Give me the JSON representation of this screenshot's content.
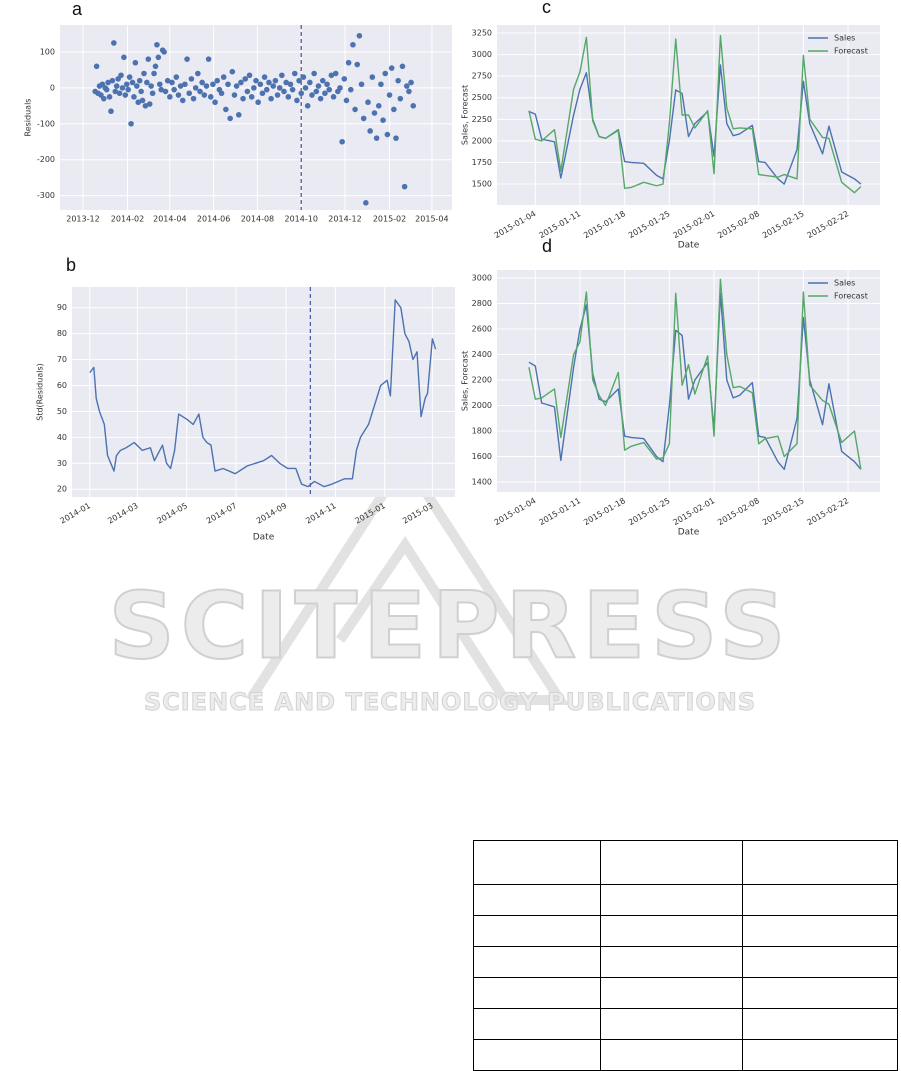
{
  "chart_data": [
    {
      "type": "scatter",
      "panel_label": "a",
      "y_label": "Residuals",
      "color": "#4c72b0",
      "grid": true,
      "vline": 304,
      "vline_color": "#4c5ea8",
      "xlim": [
        -32,
        514
      ],
      "ylim": [
        -340,
        175
      ],
      "xticks": [
        {
          "value": 0,
          "label": "2013-12"
        },
        {
          "value": 62,
          "label": "2014-02"
        },
        {
          "value": 121,
          "label": "2014-04"
        },
        {
          "value": 182,
          "label": "2014-06"
        },
        {
          "value": 243,
          "label": "2014-08"
        },
        {
          "value": 304,
          "label": "2014-10"
        },
        {
          "value": 365,
          "label": "2014-12"
        },
        {
          "value": 427,
          "label": "2015-02"
        },
        {
          "value": 486,
          "label": "2015-04"
        }
      ],
      "yticks": [
        -300,
        -200,
        -100,
        0,
        100
      ],
      "x": [
        17,
        19,
        21,
        23,
        25,
        27,
        29,
        31,
        33,
        35,
        37,
        39,
        41,
        43,
        45,
        47,
        49,
        51,
        53,
        55,
        57,
        59,
        61,
        63,
        65,
        67,
        69,
        71,
        73,
        75,
        77,
        79,
        81,
        83,
        85,
        87,
        89,
        91,
        93,
        95,
        97,
        99,
        101,
        103,
        105,
        107,
        109,
        111,
        113,
        115,
        118,
        121,
        124,
        127,
        130,
        133,
        136,
        139,
        142,
        145,
        148,
        151,
        154,
        157,
        160,
        163,
        166,
        169,
        172,
        175,
        178,
        181,
        184,
        187,
        190,
        193,
        196,
        199,
        202,
        205,
        208,
        211,
        214,
        217,
        220,
        223,
        226,
        229,
        232,
        235,
        238,
        241,
        244,
        247,
        250,
        253,
        256,
        259,
        262,
        265,
        268,
        271,
        274,
        277,
        280,
        283,
        286,
        289,
        292,
        295,
        298,
        301,
        304,
        307,
        310,
        313,
        316,
        319,
        322,
        325,
        328,
        331,
        334,
        337,
        340,
        343,
        346,
        349,
        352,
        355,
        358,
        361,
        364,
        367,
        370,
        373,
        376,
        379,
        382,
        385,
        388,
        391,
        394,
        397,
        400,
        403,
        406,
        409,
        412,
        415,
        418,
        421,
        424,
        427,
        430,
        433,
        436,
        439,
        442,
        445,
        448,
        451,
        454,
        457,
        460
      ],
      "values": [
        -10,
        60,
        -15,
        5,
        -20,
        10,
        -30,
        0,
        -5,
        15,
        -25,
        -65,
        20,
        125,
        -10,
        5,
        25,
        -15,
        35,
        0,
        85,
        -20,
        10,
        -5,
        30,
        -100,
        15,
        -25,
        70,
        5,
        -40,
        20,
        -10,
        -35,
        40,
        -50,
        15,
        80,
        -45,
        5,
        -15,
        40,
        60,
        120,
        85,
        10,
        -5,
        105,
        100,
        -10,
        20,
        -25,
        15,
        -5,
        30,
        -20,
        5,
        -35,
        10,
        80,
        -15,
        25,
        -30,
        0,
        40,
        -10,
        15,
        -20,
        5,
        80,
        -25,
        10,
        -40,
        20,
        -5,
        -15,
        30,
        -60,
        10,
        -85,
        45,
        -20,
        5,
        -75,
        15,
        -30,
        25,
        -10,
        35,
        -25,
        0,
        20,
        -40,
        10,
        -15,
        30,
        -5,
        15,
        -30,
        5,
        20,
        -20,
        0,
        35,
        -10,
        15,
        -25,
        10,
        -5,
        40,
        -35,
        20,
        -15,
        30,
        0,
        -50,
        15,
        -20,
        40,
        -10,
        5,
        -30,
        20,
        -15,
        10,
        -5,
        35,
        -25,
        40,
        -10,
        0,
        -150,
        25,
        -35,
        70,
        -5,
        120,
        -60,
        65,
        145,
        10,
        -85,
        -320,
        -40,
        -120,
        30,
        -70,
        -140,
        -50,
        10,
        -90,
        40,
        -130,
        -20,
        55,
        -60,
        -140,
        20,
        -30,
        60,
        -275,
        5,
        -10,
        15,
        -50
      ]
    },
    {
      "type": "line",
      "panel_label": "b",
      "x_label": "Date",
      "y_label": "Std(Residuals)",
      "color": "#4c72b0",
      "grid": true,
      "vline": 273,
      "vline_color": "#4c5ea8",
      "xlim": [
        -22,
        452
      ],
      "ylim": [
        17,
        98
      ],
      "xticks": [
        {
          "value": 0,
          "label": "2014-01"
        },
        {
          "value": 59,
          "label": "2014-03"
        },
        {
          "value": 120,
          "label": "2014-05"
        },
        {
          "value": 181,
          "label": "2014-07"
        },
        {
          "value": 243,
          "label": "2014-09"
        },
        {
          "value": 304,
          "label": "2014-11"
        },
        {
          "value": 365,
          "label": "2015-01"
        },
        {
          "value": 424,
          "label": "2015-03"
        }
      ],
      "yticks": [
        20,
        30,
        40,
        50,
        60,
        70,
        80,
        90
      ],
      "x": [
        0,
        5,
        8,
        12,
        18,
        22,
        26,
        30,
        33,
        38,
        45,
        55,
        65,
        75,
        80,
        90,
        95,
        100,
        105,
        110,
        120,
        128,
        135,
        140,
        145,
        150,
        155,
        165,
        180,
        195,
        205,
        215,
        225,
        235,
        245,
        255,
        262,
        270,
        278,
        290,
        300,
        315,
        325,
        330,
        335,
        345,
        355,
        360,
        368,
        372,
        378,
        385,
        390,
        395,
        400,
        405,
        410,
        415,
        418,
        424,
        428
      ],
      "values": [
        65,
        67,
        55,
        50,
        45,
        33,
        30,
        27,
        33,
        35,
        36,
        38,
        35,
        36,
        31,
        37,
        30,
        28,
        35,
        49,
        47,
        45,
        49,
        40,
        38,
        37,
        27,
        28,
        26,
        29,
        30,
        31,
        33,
        30,
        28,
        28,
        22,
        21,
        23,
        21,
        22,
        24,
        24,
        35,
        40,
        45,
        55,
        60,
        62,
        56,
        93,
        90,
        80,
        77,
        70,
        73,
        48,
        55,
        57,
        78,
        74
      ]
    },
    {
      "type": "line",
      "panel_label": "c",
      "x_label": "Date",
      "y_label": "Sales, Forecast",
      "grid": true,
      "legend": "upper right",
      "xlim": [
        "2014-12-29",
        "2015-02-27"
      ],
      "ylim": [
        1257,
        3343
      ],
      "xticks": [
        "2015-01-04",
        "2015-01-11",
        "2015-01-18",
        "2015-01-25",
        "2015-02-01",
        "2015-02-08",
        "2015-02-15",
        "2015-02-22"
      ],
      "yticks": [
        1500,
        1750,
        2000,
        2250,
        2500,
        2750,
        3000,
        3250
      ],
      "x": [
        "2015-01-03",
        "2015-01-04",
        "2015-01-05",
        "2015-01-07",
        "2015-01-08",
        "2015-01-10",
        "2015-01-11",
        "2015-01-12",
        "2015-01-13",
        "2015-01-14",
        "2015-01-15",
        "2015-01-17",
        "2015-01-18",
        "2015-01-19",
        "2015-01-21",
        "2015-01-23",
        "2015-01-24",
        "2015-01-25",
        "2015-01-26",
        "2015-01-27",
        "2015-01-28",
        "2015-01-29",
        "2015-01-31",
        "2015-02-01",
        "2015-02-02",
        "2015-02-03",
        "2015-02-04",
        "2015-02-05",
        "2015-02-07",
        "2015-02-08",
        "2015-02-09",
        "2015-02-11",
        "2015-02-12",
        "2015-02-14",
        "2015-02-15",
        "2015-02-16",
        "2015-02-18",
        "2015-02-19",
        "2015-02-21",
        "2015-02-23",
        "2015-02-24"
      ],
      "series": [
        {
          "name": "Sales",
          "color": "#4c72b0",
          "values": [
            2340,
            2310,
            2020,
            1990,
            1570,
            2300,
            2600,
            2790,
            2250,
            2050,
            2030,
            2130,
            1760,
            1750,
            1740,
            1600,
            1560,
            2000,
            2590,
            2550,
            2050,
            2200,
            2340,
            1820,
            2880,
            2200,
            2060,
            2080,
            2180,
            1760,
            1750,
            1560,
            1500,
            1900,
            2690,
            2200,
            1850,
            2170,
            1640,
            1560,
            1500
          ]
        },
        {
          "name": "Forecast",
          "color": "#55a868",
          "values": [
            2350,
            2020,
            2000,
            2130,
            1650,
            2600,
            2800,
            3200,
            2230,
            2050,
            2030,
            2120,
            1450,
            1460,
            1520,
            1480,
            1500,
            2200,
            3180,
            2300,
            2300,
            2150,
            2350,
            1620,
            3220,
            2380,
            2140,
            2150,
            2140,
            1610,
            1600,
            1580,
            1610,
            1560,
            2990,
            2250,
            2040,
            2030,
            1520,
            1400,
            1470
          ]
        }
      ]
    },
    {
      "type": "line",
      "panel_label": "d",
      "x_label": "Date",
      "y_label": "Sales, Forecast",
      "grid": true,
      "legend": "upper right",
      "xlim": [
        "2014-12-29",
        "2015-02-27"
      ],
      "ylim": [
        1322,
        3063
      ],
      "xticks": [
        "2015-01-04",
        "2015-01-11",
        "2015-01-18",
        "2015-01-25",
        "2015-02-01",
        "2015-02-08",
        "2015-02-15",
        "2015-02-22"
      ],
      "yticks": [
        1400,
        1600,
        1800,
        2000,
        2200,
        2400,
        2600,
        2800,
        3000
      ],
      "x": [
        "2015-01-03",
        "2015-01-04",
        "2015-01-05",
        "2015-01-07",
        "2015-01-08",
        "2015-01-10",
        "2015-01-11",
        "2015-01-12",
        "2015-01-13",
        "2015-01-14",
        "2015-01-15",
        "2015-01-17",
        "2015-01-18",
        "2015-01-19",
        "2015-01-21",
        "2015-01-23",
        "2015-01-24",
        "2015-01-25",
        "2015-01-26",
        "2015-01-27",
        "2015-01-28",
        "2015-01-29",
        "2015-01-31",
        "2015-02-01",
        "2015-02-02",
        "2015-02-03",
        "2015-02-04",
        "2015-02-05",
        "2015-02-07",
        "2015-02-08",
        "2015-02-09",
        "2015-02-11",
        "2015-02-12",
        "2015-02-14",
        "2015-02-15",
        "2015-02-16",
        "2015-02-18",
        "2015-02-19",
        "2015-02-21",
        "2015-02-23",
        "2015-02-24"
      ],
      "series": [
        {
          "name": "Sales",
          "color": "#4c72b0",
          "values": [
            2340,
            2310,
            2020,
            1990,
            1570,
            2300,
            2600,
            2790,
            2250,
            2050,
            2030,
            2130,
            1760,
            1750,
            1740,
            1600,
            1560,
            2000,
            2590,
            2550,
            2050,
            2200,
            2340,
            1820,
            2880,
            2200,
            2060,
            2080,
            2180,
            1760,
            1750,
            1560,
            1500,
            1900,
            2690,
            2200,
            1850,
            2170,
            1640,
            1560,
            1500
          ]
        },
        {
          "name": "Forecast",
          "color": "#55a868",
          "values": [
            2300,
            2050,
            2060,
            2130,
            1750,
            2400,
            2500,
            2890,
            2200,
            2080,
            2000,
            2260,
            1650,
            1680,
            1710,
            1580,
            1590,
            1700,
            2880,
            2160,
            2320,
            2090,
            2390,
            1760,
            2990,
            2400,
            2140,
            2150,
            2100,
            1700,
            1740,
            1760,
            1600,
            1700,
            2890,
            2160,
            2040,
            2010,
            1710,
            1800,
            1500
          ]
        }
      ]
    }
  ],
  "watermark": {
    "title": "SCITEPRESS",
    "subtitle": "SCIENCE AND TECHNOLOGY PUBLICATIONS"
  }
}
